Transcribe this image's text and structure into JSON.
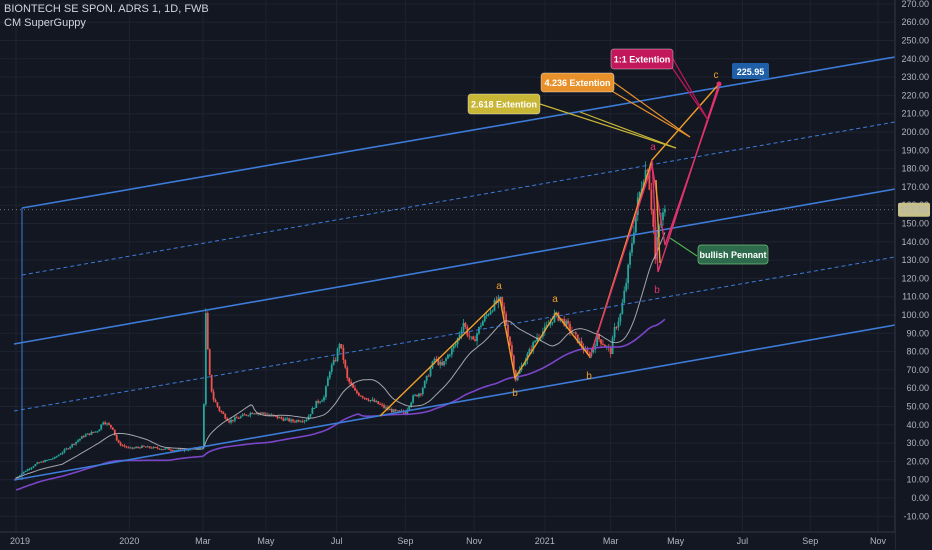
{
  "header": {
    "symbol": "BIONTECH SE SPON. ADRS 1, 1D, FWB",
    "indicator": "CM SuperGuppy"
  },
  "colors": {
    "background": "#131722",
    "grid": "#1e2330",
    "channel": "#3d7bd8",
    "up": "#26a69a",
    "down": "#ef5350",
    "wave_orange": "#f0a028",
    "wave_pink": "#e0336b",
    "ma_light": "#c8c8d0",
    "ma_purple": "#7b45c8"
  },
  "chart_data": {
    "type": "candlestick",
    "title": "BIONTECH SE SPON. ADRS 1, 1D, FWB",
    "y_axis": {
      "min": -15,
      "max": 275,
      "ticks": [
        -10,
        0,
        10,
        20,
        30,
        40,
        50,
        60,
        70,
        80,
        90,
        100,
        110,
        120,
        130,
        140,
        150,
        160,
        170,
        180,
        190,
        200,
        210,
        220,
        230,
        240,
        250,
        260,
        270
      ],
      "tick_labels": [
        "-10.00",
        "0.00",
        "10.00",
        "20.00",
        "30.00",
        "40.00",
        "50.00",
        "60.00",
        "70.00",
        "80.00",
        "90.00",
        "100.00",
        "110.00",
        "120.00",
        "130.00",
        "140.00",
        "150.00",
        "160.00",
        "170.00",
        "180.00",
        "190.00",
        "200.00",
        "210.00",
        "220.00",
        "230.00",
        "240.00",
        "250.00",
        "260.00",
        "270.00"
      ]
    },
    "x_axis": {
      "labels": [
        "2019",
        "2020",
        "Mar",
        "May",
        "Jul",
        "Sep",
        "Nov",
        "2021",
        "Mar",
        "May",
        "Jul",
        "Sep",
        "Nov"
      ],
      "label_day": [
        0,
        117,
        193,
        258,
        331,
        402,
        473,
        546,
        614,
        681,
        750,
        820,
        890
      ]
    },
    "price_path": [
      [
        0,
        11
      ],
      [
        10,
        15
      ],
      [
        22,
        19
      ],
      [
        40,
        22
      ],
      [
        55,
        28
      ],
      [
        70,
        34
      ],
      [
        85,
        37
      ],
      [
        90,
        42
      ],
      [
        100,
        38
      ],
      [
        105,
        30
      ],
      [
        117,
        27
      ],
      [
        130,
        28
      ],
      [
        150,
        27
      ],
      [
        170,
        26
      ],
      [
        185,
        27
      ],
      [
        193,
        28
      ],
      [
        196,
        100
      ],
      [
        199,
        70
      ],
      [
        203,
        55
      ],
      [
        210,
        48
      ],
      [
        220,
        42
      ],
      [
        235,
        45
      ],
      [
        245,
        47
      ],
      [
        258,
        46
      ],
      [
        270,
        44
      ],
      [
        285,
        42
      ],
      [
        300,
        43
      ],
      [
        310,
        52
      ],
      [
        318,
        55
      ],
      [
        324,
        70
      ],
      [
        330,
        76
      ],
      [
        334,
        85
      ],
      [
        338,
        76
      ],
      [
        342,
        65
      ],
      [
        350,
        58
      ],
      [
        360,
        55
      ],
      [
        372,
        52
      ],
      [
        382,
        49
      ],
      [
        392,
        47
      ],
      [
        402,
        47
      ],
      [
        410,
        55
      ],
      [
        418,
        58
      ],
      [
        426,
        68
      ],
      [
        432,
        76
      ],
      [
        440,
        72
      ],
      [
        446,
        78
      ],
      [
        454,
        84
      ],
      [
        462,
        96
      ],
      [
        466,
        90
      ],
      [
        472,
        85
      ],
      [
        480,
        95
      ],
      [
        486,
        100
      ],
      [
        494,
        106
      ],
      [
        500,
        108
      ],
      [
        505,
        98
      ],
      [
        510,
        84
      ],
      [
        516,
        65
      ],
      [
        522,
        72
      ],
      [
        530,
        80
      ],
      [
        538,
        88
      ],
      [
        546,
        92
      ],
      [
        552,
        96
      ],
      [
        556,
        100
      ],
      [
        562,
        98
      ],
      [
        568,
        95
      ],
      [
        575,
        90
      ],
      [
        583,
        84
      ],
      [
        590,
        78
      ],
      [
        595,
        80
      ],
      [
        600,
        88
      ],
      [
        607,
        84
      ],
      [
        614,
        80
      ],
      [
        618,
        92
      ],
      [
        624,
        100
      ],
      [
        630,
        118
      ],
      [
        636,
        140
      ],
      [
        642,
        162
      ],
      [
        648,
        176
      ],
      [
        652,
        182
      ],
      [
        655,
        165
      ],
      [
        658,
        148
      ],
      [
        660,
        130
      ],
      [
        663,
        146
      ],
      [
        667,
        154
      ],
      [
        671,
        157
      ]
    ],
    "last_price": 157.5,
    "last_price_label": "157.50",
    "target_label": "225.95",
    "annotations": [
      {
        "text": "1:1 Extention",
        "color": "#c2185b"
      },
      {
        "text": "4.236 Extention",
        "color": "#e8912a"
      },
      {
        "text": "2.618 Extention",
        "color": "#c8b637"
      },
      {
        "text": "bullish Pennant",
        "color": "#2e6b4d"
      }
    ],
    "wave_labels": [
      "a",
      "b",
      "a",
      "b",
      "a",
      "b",
      "c"
    ]
  }
}
